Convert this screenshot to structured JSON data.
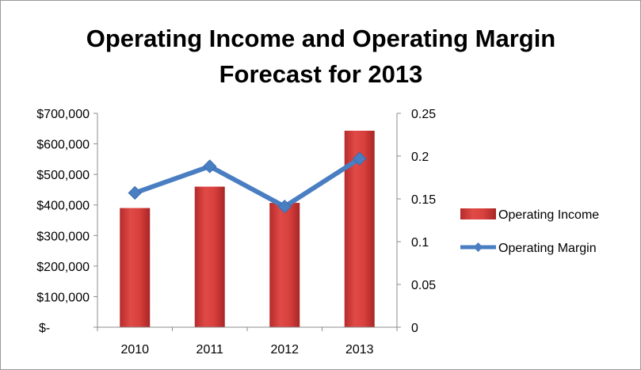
{
  "chart_data": {
    "type": "bar",
    "title_lines": [
      "Operating Income and Operating Margin",
      "Forecast for 2013"
    ],
    "categories": [
      "2010",
      "2011",
      "2012",
      "2013"
    ],
    "series": [
      {
        "name": "Operating Income",
        "type": "bar",
        "axis": "left",
        "color": "#d03a37",
        "values": [
          390000,
          460000,
          407000,
          643000
        ]
      },
      {
        "name": "Operating Margin",
        "type": "line",
        "axis": "right",
        "color": "#4a7ec2",
        "marker": "diamond",
        "values": [
          0.157,
          0.188,
          0.141,
          0.197
        ]
      }
    ],
    "y_left": {
      "ylim": [
        0,
        700000
      ],
      "tick_labels": [
        "$-",
        "$100,000",
        "$200,000",
        "$300,000",
        "$400,000",
        "$500,000",
        "$600,000",
        "$700,000"
      ]
    },
    "y_right": {
      "ylim": [
        0,
        0.25
      ],
      "tick_labels": [
        "0",
        "0.05",
        "0.1",
        "0.15",
        "0.2",
        "0.25"
      ]
    },
    "grid": false,
    "legend_position": "right"
  }
}
